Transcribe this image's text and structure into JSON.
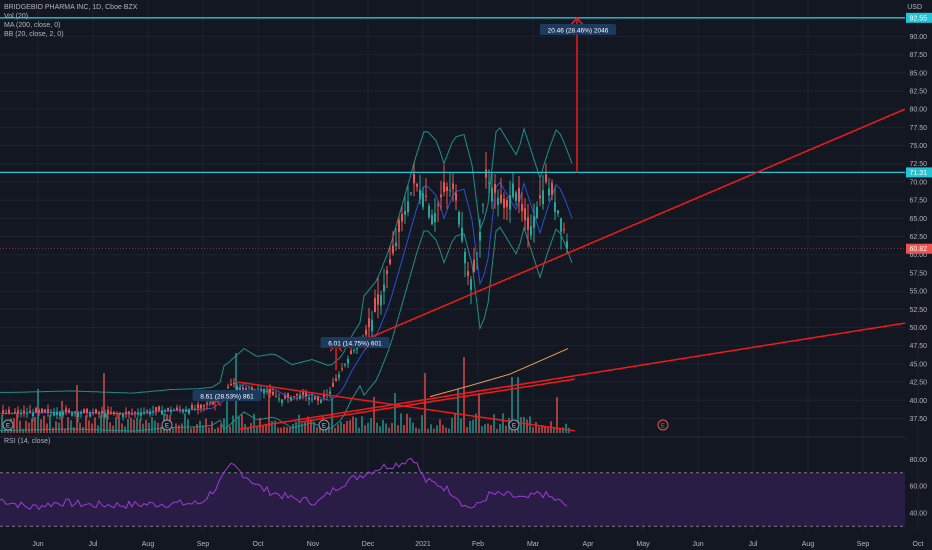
{
  "legend": {
    "symbol": "BRIDGEBIO PHARMA INC, 1D, Cboe BZX",
    "vol": "Vol (20)",
    "ma": "MA (200, close, 0)",
    "bb": "BB (20, close, 2, 0)",
    "rsi": "RSI (14, close)"
  },
  "currency": "USD",
  "colors": {
    "background": "#131722",
    "up": "#26a69a",
    "down": "#ef5350",
    "trendline": "#f21a1a",
    "level": "#22c4d6",
    "rsi": "#9b3bd6",
    "rsi_band": "#2a1d45",
    "bb": "#1f8f86",
    "ma": "#f0a34a"
  },
  "chart_data": {
    "type": "candlestick",
    "x_tick_labels": [
      "Jun",
      "Jul",
      "Aug",
      "Sep",
      "Oct",
      "Nov",
      "Dec",
      "2021",
      "Feb",
      "Mar",
      "Apr",
      "May",
      "Jun",
      "Jul",
      "Aug",
      "Sep",
      "Oct"
    ],
    "price_axis": {
      "ylim": [
        35.5,
        95
      ],
      "ticks": [
        37.5,
        40.0,
        42.5,
        45.0,
        47.5,
        50.0,
        52.5,
        55.0,
        57.5,
        60.0,
        62.5,
        65.0,
        67.5,
        70.0,
        72.5,
        75.0,
        77.5,
        80.0,
        82.5,
        85.0,
        87.5,
        90.0,
        92.5
      ],
      "tick_labels": [
        "37.50",
        "40.00",
        "42.50",
        "45.00",
        "47.50",
        "50.00",
        "52.50",
        "55.00",
        "57.50",
        "60.00",
        "62.50",
        "65.00",
        "67.50",
        "70.00",
        "72.50",
        "75.00",
        "77.50",
        "80.00",
        "82.50",
        "85.00",
        "87.50",
        "90.00",
        "92.50"
      ]
    },
    "price_tags": [
      {
        "value": 92.55,
        "label": "92.55",
        "color": "#22c4d6"
      },
      {
        "value": 71.31,
        "label": "71.31",
        "color": "#22c4d6"
      },
      {
        "value": 60.82,
        "label": "60.82",
        "color": "#ef5350"
      }
    ],
    "horizontal_levels": [
      92.55,
      71.31
    ],
    "last_price": 60.82,
    "annotations": [
      {
        "text": "8.61 (28.53%) 861",
        "arrow_from": 38.6,
        "arrow_to": 40.2
      },
      {
        "text": "6.01 (14.75%) 601",
        "arrow_from": 44.1,
        "arrow_to": 47.7
      },
      {
        "text": "20.46 (28.46%) 2046",
        "arrow_from": 71.31,
        "arrow_to": 92.55
      }
    ],
    "rsi_axis": {
      "ticks": [
        40,
        60,
        80
      ],
      "tick_labels": [
        "40.00",
        "60.00",
        "80.00"
      ],
      "upper_band": 70,
      "lower_band": 30,
      "ylim": [
        25,
        90
      ]
    },
    "earnings_markers": [
      "E",
      "E",
      "E",
      "E",
      "E"
    ],
    "price_path": [
      [
        0,
        38.2
      ],
      [
        60,
        38.4
      ],
      [
        120,
        38.1
      ],
      [
        160,
        38.6
      ],
      [
        185,
        38.7
      ],
      [
        200,
        38.9
      ],
      [
        215,
        40.2
      ],
      [
        232,
        42.3
      ],
      [
        245,
        41.2
      ],
      [
        262,
        41.6
      ],
      [
        280,
        40.1
      ],
      [
        300,
        40.8
      ],
      [
        318,
        39.9
      ],
      [
        330,
        41.3
      ],
      [
        340,
        44.1
      ],
      [
        352,
        46.8
      ],
      [
        365,
        49.0
      ],
      [
        378,
        53.5
      ],
      [
        392,
        60.2
      ],
      [
        405,
        66.5
      ],
      [
        413,
        69.8
      ],
      [
        425,
        68.0
      ],
      [
        432,
        65.0
      ],
      [
        442,
        68.6
      ],
      [
        452,
        69.0
      ],
      [
        460,
        64.8
      ],
      [
        468,
        56.0
      ],
      [
        475,
        58.2
      ],
      [
        485,
        70.6
      ],
      [
        495,
        68.3
      ],
      [
        505,
        66.0
      ],
      [
        512,
        69.8
      ],
      [
        520,
        66.4
      ],
      [
        528,
        63.0
      ],
      [
        535,
        66.2
      ],
      [
        545,
        70.0
      ],
      [
        553,
        67.6
      ],
      [
        560,
        65.0
      ],
      [
        568,
        60.8
      ]
    ],
    "volume_spikes": [
      [
        17,
        0.25
      ],
      [
        37,
        0.55
      ],
      [
        62,
        0.4
      ],
      [
        75,
        0.6
      ],
      [
        103,
        0.75
      ],
      [
        225,
        0.4
      ],
      [
        236,
        1.0
      ],
      [
        268,
        0.55
      ],
      [
        330,
        0.45
      ],
      [
        372,
        0.45
      ],
      [
        395,
        0.5
      ],
      [
        425,
        0.75
      ],
      [
        458,
        0.55
      ],
      [
        462,
        0.95
      ],
      [
        478,
        0.5
      ],
      [
        510,
        0.7
      ],
      [
        518,
        0.7
      ],
      [
        556,
        0.45
      ]
    ],
    "rsi_path": [
      [
        0,
        50
      ],
      [
        30,
        44
      ],
      [
        60,
        48
      ],
      [
        90,
        46
      ],
      [
        130,
        46
      ],
      [
        170,
        47
      ],
      [
        200,
        47
      ],
      [
        215,
        58
      ],
      [
        232,
        76
      ],
      [
        245,
        68
      ],
      [
        262,
        58
      ],
      [
        290,
        51
      ],
      [
        318,
        48
      ],
      [
        340,
        61
      ],
      [
        360,
        68
      ],
      [
        380,
        74
      ],
      [
        400,
        77
      ],
      [
        413,
        82
      ],
      [
        425,
        64
      ],
      [
        440,
        61
      ],
      [
        455,
        54
      ],
      [
        465,
        45
      ],
      [
        475,
        44
      ],
      [
        490,
        54
      ],
      [
        510,
        53
      ],
      [
        525,
        50
      ],
      [
        540,
        55
      ],
      [
        555,
        50
      ],
      [
        568,
        45
      ]
    ]
  }
}
